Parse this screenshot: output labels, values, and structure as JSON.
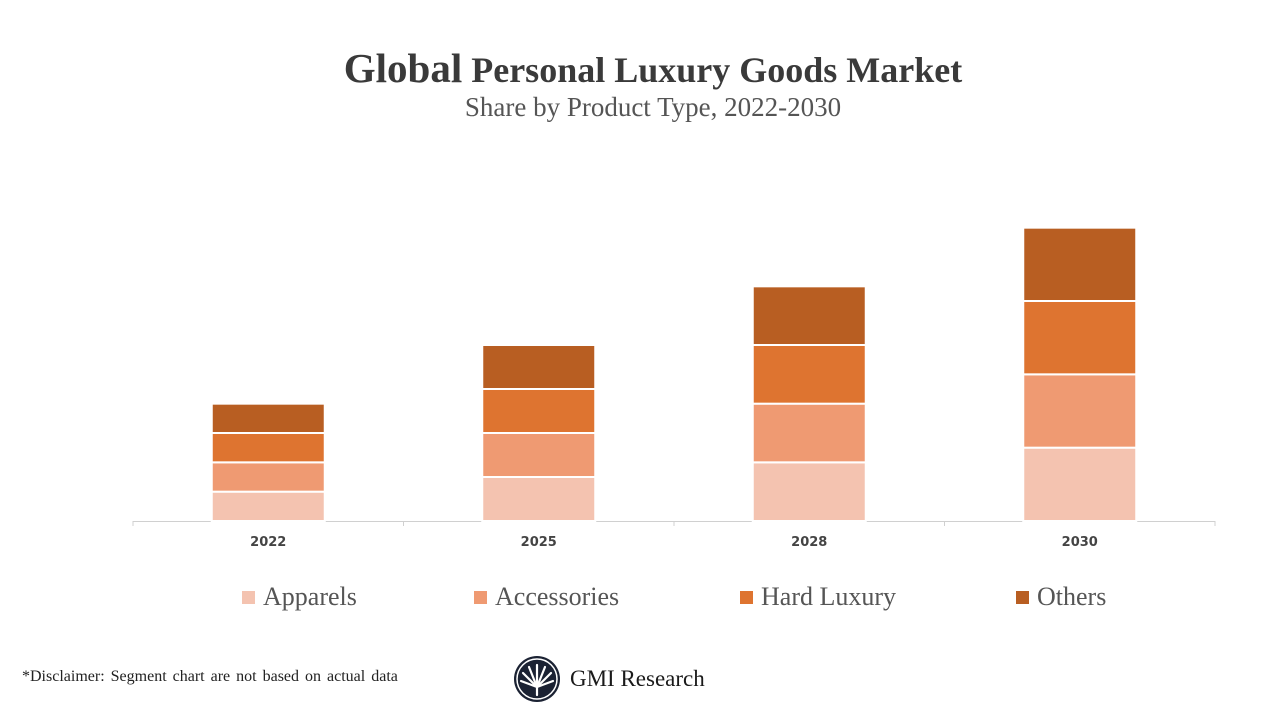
{
  "title_part1": "Global",
  "title_part2": "Personal Luxury Goods Market",
  "subtitle": "Share by Product Type, 2022-2030",
  "chart_data": {
    "type": "bar",
    "stacked": true,
    "categories": [
      "2022",
      "2025",
      "2028",
      "2030"
    ],
    "series": [
      {
        "name": "Apparels",
        "values": [
          1,
          1.5,
          2,
          2.5
        ],
        "color": "#F4C3B0"
      },
      {
        "name": "Accessories",
        "values": [
          1,
          1.5,
          2,
          2.5
        ],
        "color": "#EF9A72"
      },
      {
        "name": "Hard Luxury",
        "values": [
          1,
          1.5,
          2,
          2.5
        ],
        "color": "#DE7430"
      },
      {
        "name": "Others",
        "values": [
          1,
          1.5,
          2,
          2.5
        ],
        "color": "#B85E22"
      }
    ],
    "ylim": [
      0,
      12
    ],
    "y_axis_shown": false,
    "grid": false,
    "legend_position": "bottom"
  },
  "disclaimer": "*Disclaimer:  Segment chart are not based on actual data",
  "logo_text": "GMI Research"
}
